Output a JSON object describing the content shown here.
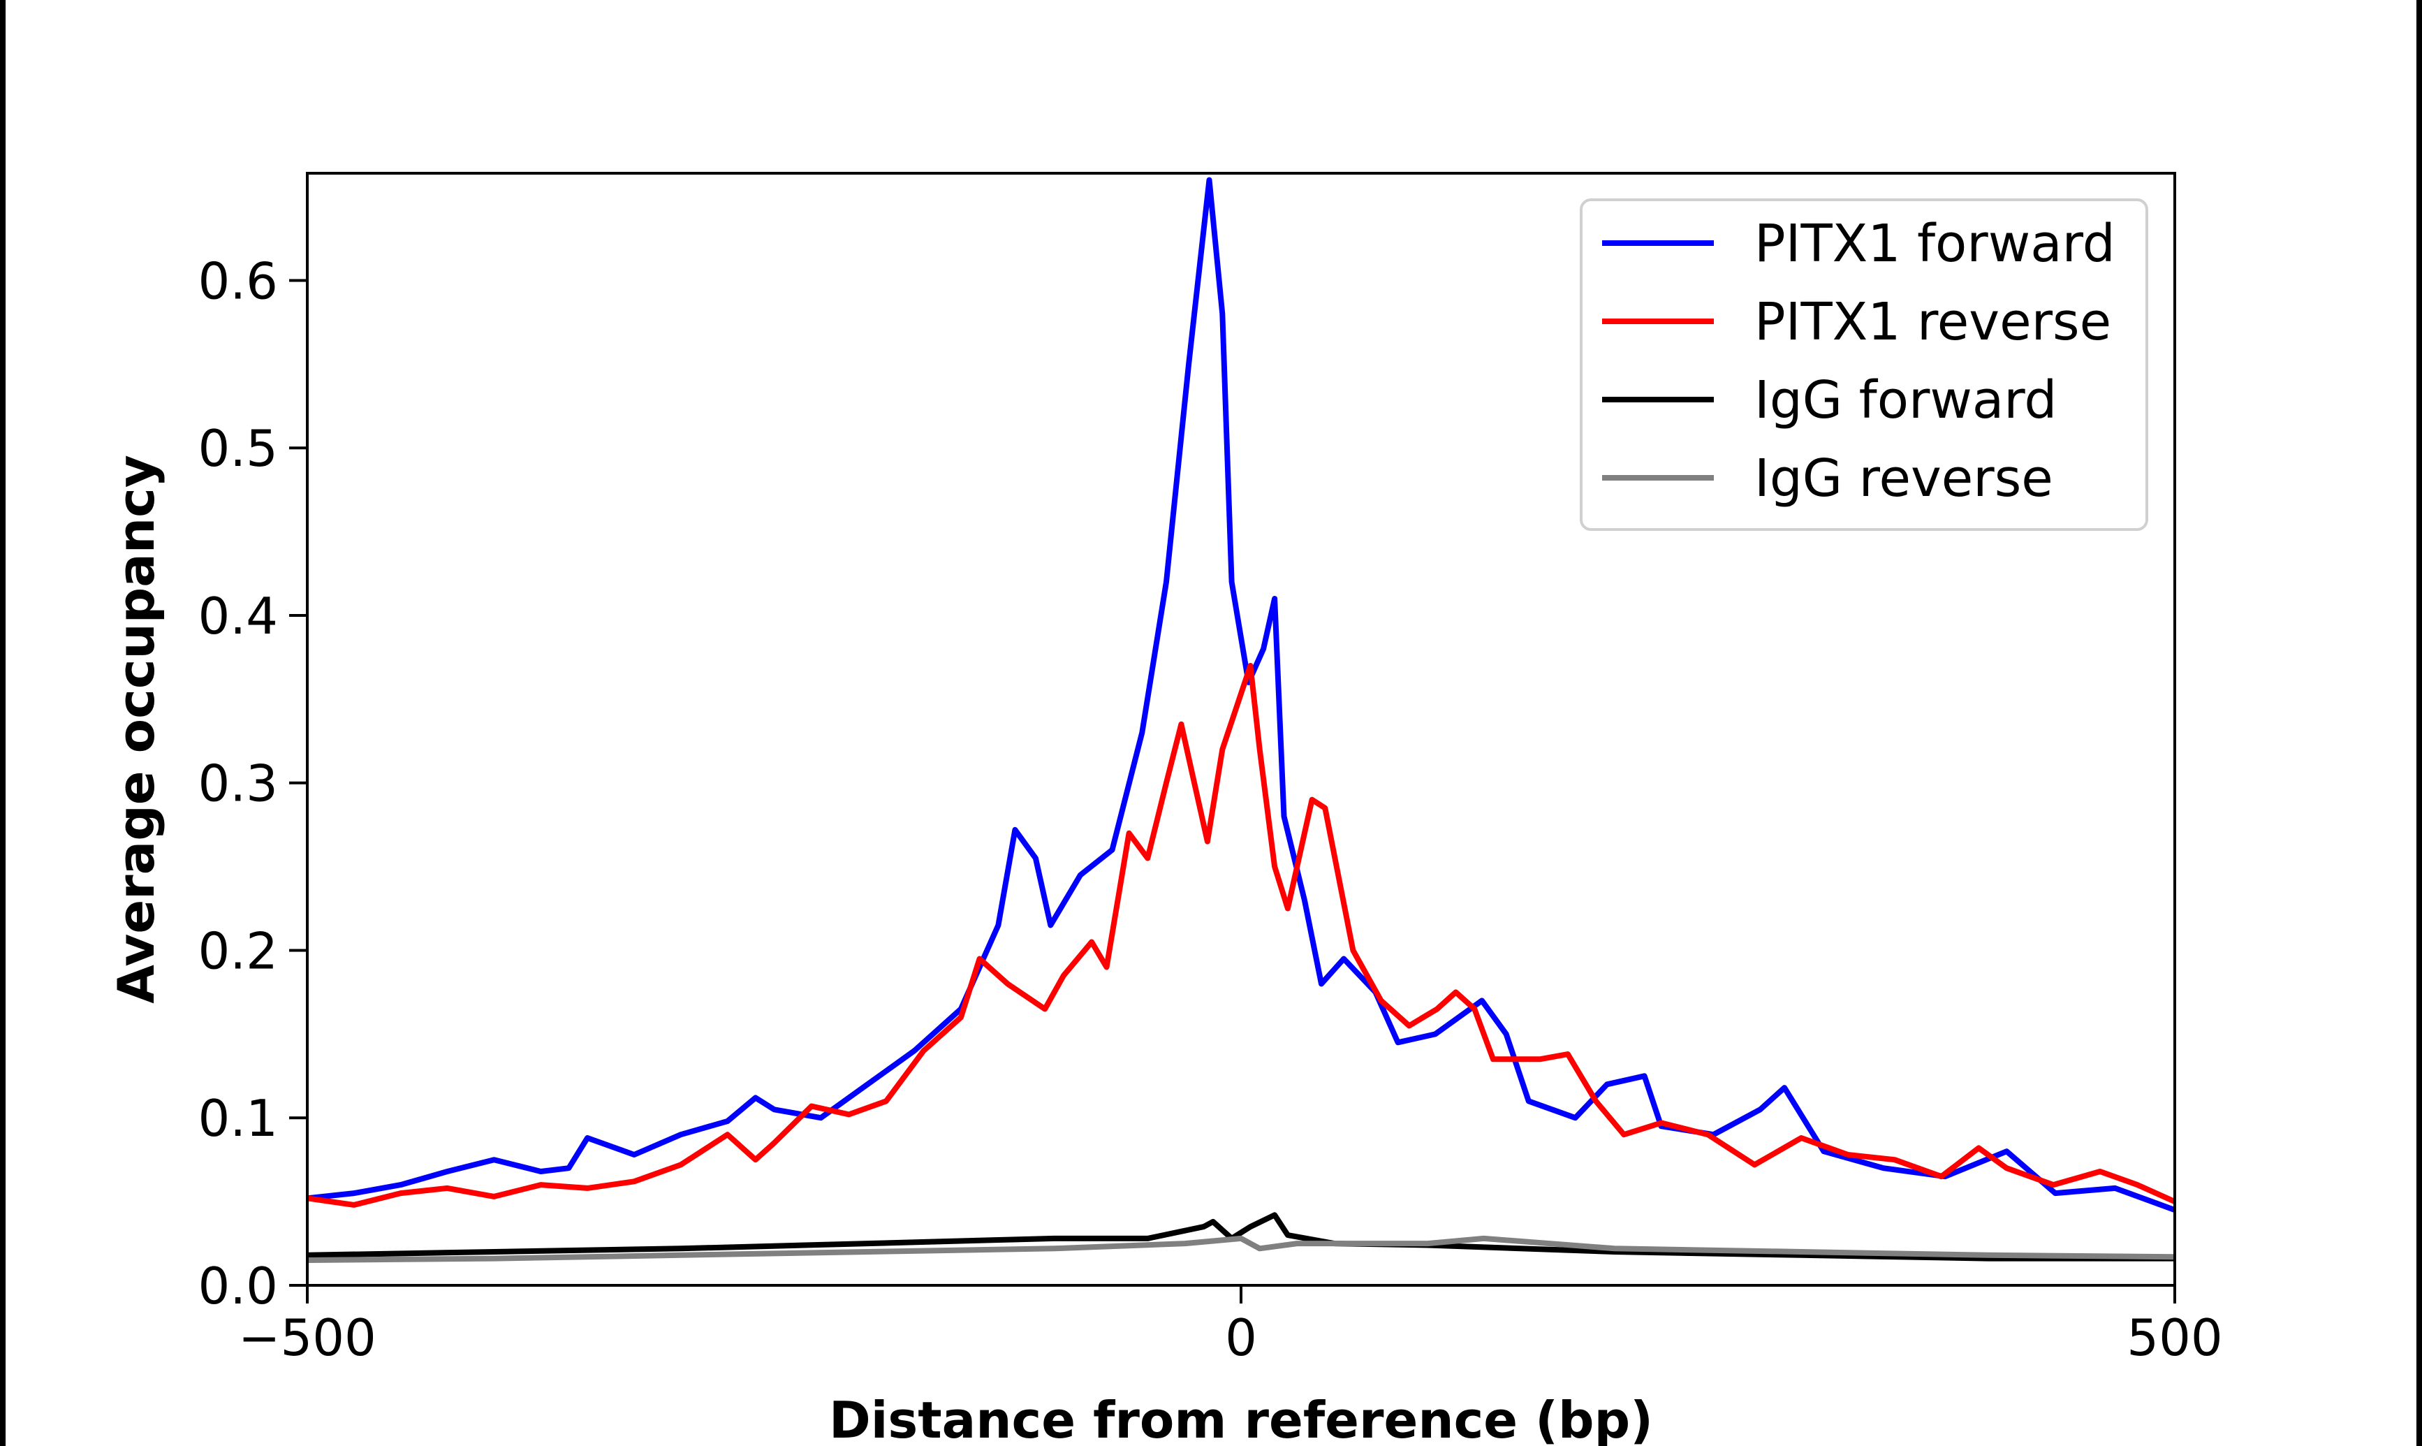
{
  "chart_data": {
    "type": "line",
    "title": "",
    "xlabel": "Distance from reference (bp)",
    "ylabel": "Average occupancy",
    "xlim": [
      -500,
      500
    ],
    "ylim": [
      0,
      0.664
    ],
    "xticks": [
      -500,
      0,
      500
    ],
    "xtick_labels": [
      "−500",
      "0",
      "500"
    ],
    "yticks": [
      0.0,
      0.1,
      0.2,
      0.3,
      0.4,
      0.5,
      0.6
    ],
    "ytick_labels": [
      "0.0",
      "0.1",
      "0.2",
      "0.3",
      "0.4",
      "0.5",
      "0.6"
    ],
    "grid": false,
    "legend_position": "top-right",
    "series": [
      {
        "name": "PITX1 forward",
        "color": "#0000ff",
        "x": [
          -500,
          -475,
          -450,
          -425,
          -400,
          -375,
          -360,
          -350,
          -325,
          -300,
          -275,
          -260,
          -250,
          -225,
          -200,
          -175,
          -150,
          -130,
          -121,
          -110,
          -102,
          -86,
          -69,
          -53,
          -40,
          -28,
          -17,
          -10,
          -5,
          4,
          12,
          18,
          23,
          34,
          43,
          55,
          72,
          84,
          104,
          129,
          142,
          154,
          179,
          196,
          216,
          225,
          253,
          278,
          291,
          312,
          344,
          377,
          410,
          436,
          468,
          500
        ],
        "y": [
          0.052,
          0.055,
          0.06,
          0.068,
          0.075,
          0.068,
          0.07,
          0.088,
          0.078,
          0.09,
          0.098,
          0.112,
          0.105,
          0.1,
          0.12,
          0.14,
          0.165,
          0.215,
          0.272,
          0.255,
          0.215,
          0.245,
          0.26,
          0.33,
          0.42,
          0.55,
          0.66,
          0.58,
          0.42,
          0.36,
          0.38,
          0.41,
          0.28,
          0.23,
          0.18,
          0.195,
          0.175,
          0.145,
          0.15,
          0.17,
          0.15,
          0.11,
          0.1,
          0.12,
          0.125,
          0.095,
          0.09,
          0.105,
          0.118,
          0.08,
          0.07,
          0.065,
          0.08,
          0.055,
          0.058,
          0.045
        ]
      },
      {
        "name": "PITX1 reverse",
        "color": "#ff0000",
        "x": [
          -500,
          -475,
          -450,
          -425,
          -400,
          -375,
          -350,
          -325,
          -300,
          -275,
          -260,
          -250,
          -230,
          -210,
          -190,
          -170,
          -150,
          -140,
          -125,
          -105,
          -95,
          -80,
          -72,
          -60,
          -50,
          -40,
          -32,
          -25,
          -18,
          -10,
          5,
          10,
          18,
          25,
          38,
          45,
          60,
          75,
          90,
          105,
          115,
          125,
          135,
          160,
          175,
          190,
          205,
          225,
          250,
          275,
          300,
          325,
          350,
          375,
          395,
          410,
          435,
          460,
          480,
          500
        ],
        "y": [
          0.052,
          0.048,
          0.055,
          0.058,
          0.053,
          0.06,
          0.058,
          0.062,
          0.072,
          0.09,
          0.075,
          0.085,
          0.107,
          0.102,
          0.11,
          0.14,
          0.16,
          0.195,
          0.18,
          0.165,
          0.185,
          0.205,
          0.19,
          0.27,
          0.255,
          0.3,
          0.335,
          0.3,
          0.265,
          0.32,
          0.37,
          0.32,
          0.25,
          0.225,
          0.29,
          0.285,
          0.2,
          0.17,
          0.155,
          0.165,
          0.175,
          0.165,
          0.135,
          0.135,
          0.138,
          0.11,
          0.09,
          0.097,
          0.09,
          0.072,
          0.088,
          0.078,
          0.075,
          0.065,
          0.082,
          0.07,
          0.06,
          0.068,
          0.06,
          0.05
        ]
      },
      {
        "name": "IgG forward",
        "color": "#000000",
        "x": [
          -500,
          -400,
          -300,
          -200,
          -100,
          -50,
          -20,
          -15,
          -5,
          5,
          18,
          25,
          50,
          100,
          200,
          300,
          400,
          500
        ],
        "y": [
          0.018,
          0.02,
          0.022,
          0.025,
          0.028,
          0.028,
          0.035,
          0.038,
          0.028,
          0.035,
          0.042,
          0.03,
          0.025,
          0.024,
          0.02,
          0.018,
          0.016,
          0.016
        ]
      },
      {
        "name": "IgG reverse",
        "color": "#808080",
        "x": [
          -500,
          -400,
          -300,
          -200,
          -100,
          -30,
          0,
          10,
          30,
          100,
          130,
          200,
          300,
          400,
          500
        ],
        "y": [
          0.015,
          0.016,
          0.018,
          0.02,
          0.022,
          0.025,
          0.028,
          0.022,
          0.025,
          0.025,
          0.028,
          0.022,
          0.02,
          0.018,
          0.017
        ]
      }
    ]
  }
}
